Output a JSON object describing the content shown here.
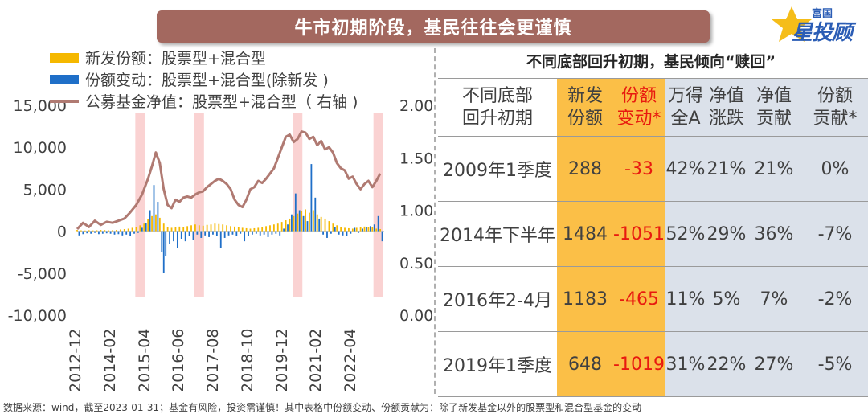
{
  "header": {
    "title": "牛市初期阶段，基民往往会更谨慎",
    "logo_small": "富国",
    "logo_big": "星投顾"
  },
  "legend": [
    {
      "label": "新发份额：股票型+混合型",
      "color": "#f5b800",
      "kind": "bar"
    },
    {
      "label": "份额变动：股票型+混合型(除新发 )",
      "color": "#1f6fc8",
      "kind": "bar"
    },
    {
      "label": "公募基金净值：股票型+混合型（ 右轴 )",
      "color": "#b07a72",
      "kind": "line"
    }
  ],
  "chart_data": {
    "type": "bar",
    "x_tick_labels": [
      "2012-12",
      "2014-02",
      "2015-04",
      "2016-06",
      "2017-08",
      "2018-10",
      "2019-12",
      "2021-02",
      "2022-04"
    ],
    "left_axis": {
      "ticks": [
        "15,000",
        "10,000",
        "5,000",
        "0",
        "-5,000",
        "-10,000"
      ],
      "range": [
        -10000,
        15000
      ]
    },
    "right_axis": {
      "ticks": [
        "2.00",
        "1.50",
        "1.00",
        "0.50",
        "0.00"
      ],
      "range": [
        0.0,
        2.0
      ]
    },
    "highlight_periods": [
      "2014-02",
      "2016-02",
      "2018-12",
      "2022-12"
    ],
    "series": [
      {
        "name": "新发份额：股票型+混合型",
        "color": "#f5b800",
        "values": [
          [
            0,
            150
          ],
          [
            2,
            100
          ],
          [
            4,
            80
          ],
          [
            6,
            120
          ],
          [
            8,
            90
          ],
          [
            10,
            110
          ],
          [
            12,
            150
          ],
          [
            14,
            130
          ],
          [
            16,
            100
          ],
          [
            18,
            120
          ],
          [
            20,
            150
          ],
          [
            22,
            200
          ],
          [
            24,
            250
          ],
          [
            26,
            300
          ],
          [
            28,
            400
          ],
          [
            30,
            500
          ],
          [
            32,
            700
          ],
          [
            34,
            900
          ],
          [
            36,
            1400
          ],
          [
            38,
            1800
          ],
          [
            40,
            2000
          ],
          [
            42,
            1600
          ],
          [
            44,
            900
          ],
          [
            46,
            500
          ],
          [
            48,
            400
          ],
          [
            50,
            450
          ],
          [
            52,
            550
          ],
          [
            54,
            500
          ],
          [
            56,
            600
          ],
          [
            58,
            700
          ],
          [
            60,
            800
          ],
          [
            62,
            700
          ],
          [
            64,
            650
          ],
          [
            66,
            750
          ],
          [
            68,
            800
          ],
          [
            70,
            900
          ],
          [
            72,
            850
          ],
          [
            74,
            800
          ],
          [
            76,
            700
          ],
          [
            78,
            600
          ],
          [
            80,
            550
          ],
          [
            82,
            500
          ],
          [
            84,
            400
          ],
          [
            86,
            350
          ],
          [
            88,
            300
          ],
          [
            90,
            350
          ],
          [
            92,
            400
          ],
          [
            94,
            500
          ],
          [
            96,
            600
          ],
          [
            98,
            700
          ],
          [
            100,
            800
          ],
          [
            102,
            900
          ],
          [
            104,
            1100
          ],
          [
            106,
            1300
          ],
          [
            108,
            1500
          ],
          [
            110,
            1800
          ],
          [
            112,
            2100
          ],
          [
            114,
            2400
          ],
          [
            116,
            2600
          ],
          [
            118,
            2200
          ],
          [
            120,
            2500
          ],
          [
            122,
            2000
          ],
          [
            124,
            1700
          ],
          [
            126,
            1500
          ],
          [
            128,
            1200
          ],
          [
            130,
            900
          ],
          [
            132,
            700
          ],
          [
            134,
            500
          ],
          [
            136,
            400
          ],
          [
            138,
            350
          ],
          [
            140,
            300
          ],
          [
            142,
            400
          ],
          [
            144,
            500
          ],
          [
            146,
            550
          ],
          [
            148,
            500
          ],
          [
            150,
            450
          ],
          [
            152,
            300
          ],
          [
            154,
            250
          ]
        ]
      },
      {
        "name": "份额变动：股票型+混合型(除新发 )",
        "color": "#1f6fc8",
        "values": [
          [
            1,
            -500
          ],
          [
            3,
            -350
          ],
          [
            5,
            -250
          ],
          [
            7,
            -300
          ],
          [
            9,
            -200
          ],
          [
            11,
            -350
          ],
          [
            13,
            -300
          ],
          [
            15,
            -250
          ],
          [
            17,
            -300
          ],
          [
            19,
            -400
          ],
          [
            21,
            -350
          ],
          [
            23,
            -500
          ],
          [
            25,
            -400
          ],
          [
            27,
            -600
          ],
          [
            29,
            -300
          ],
          [
            31,
            -200
          ],
          [
            33,
            400
          ],
          [
            35,
            1000
          ],
          [
            37,
            2500
          ],
          [
            39,
            5500
          ],
          [
            41,
            3500
          ],
          [
            43,
            -2500
          ],
          [
            44,
            -5000
          ],
          [
            45,
            -3000
          ],
          [
            47,
            -1500
          ],
          [
            49,
            -1200
          ],
          [
            51,
            -2000
          ],
          [
            53,
            -900
          ],
          [
            55,
            -1200
          ],
          [
            57,
            -600
          ],
          [
            59,
            -1000
          ],
          [
            61,
            -400
          ],
          [
            63,
            -800
          ],
          [
            65,
            -500
          ],
          [
            67,
            -700
          ],
          [
            69,
            -400
          ],
          [
            71,
            -600
          ],
          [
            73,
            -2000
          ],
          [
            75,
            -800
          ],
          [
            77,
            -500
          ],
          [
            79,
            -400
          ],
          [
            81,
            -600
          ],
          [
            83,
            -300
          ],
          [
            85,
            -1200
          ],
          [
            87,
            -600
          ],
          [
            89,
            -400
          ],
          [
            91,
            -300
          ],
          [
            93,
            -500
          ],
          [
            95,
            -400
          ],
          [
            97,
            -700
          ],
          [
            99,
            -400
          ],
          [
            101,
            -300
          ],
          [
            103,
            -500
          ],
          [
            105,
            300
          ],
          [
            107,
            800
          ],
          [
            109,
            2000
          ],
          [
            111,
            4500
          ],
          [
            113,
            2500
          ],
          [
            115,
            1800
          ],
          [
            117,
            1200
          ],
          [
            119,
            8000
          ],
          [
            121,
            4000
          ],
          [
            123,
            1500
          ],
          [
            125,
            -400
          ],
          [
            127,
            -800
          ],
          [
            129,
            -300
          ],
          [
            131,
            500
          ],
          [
            133,
            -400
          ],
          [
            135,
            -500
          ],
          [
            137,
            -600
          ],
          [
            139,
            -300
          ],
          [
            141,
            400
          ],
          [
            143,
            -200
          ],
          [
            145,
            300
          ],
          [
            147,
            500
          ],
          [
            149,
            600
          ],
          [
            151,
            800
          ],
          [
            153,
            1800
          ],
          [
            155,
            -1200
          ]
        ]
      },
      {
        "name": "公募基金净值：股票型+混合型（ 右轴 )",
        "color": "#b07a72",
        "points": [
          [
            0,
            0.82
          ],
          [
            3,
            0.88
          ],
          [
            6,
            0.84
          ],
          [
            9,
            0.9
          ],
          [
            12,
            0.86
          ],
          [
            15,
            0.89
          ],
          [
            18,
            0.88
          ],
          [
            21,
            0.9
          ],
          [
            24,
            0.92
          ],
          [
            27,
            0.98
          ],
          [
            30,
            1.05
          ],
          [
            33,
            1.15
          ],
          [
            36,
            1.3
          ],
          [
            38,
            1.42
          ],
          [
            40,
            1.55
          ],
          [
            42,
            1.45
          ],
          [
            44,
            1.2
          ],
          [
            46,
            1.05
          ],
          [
            48,
            1.02
          ],
          [
            50,
            1.1
          ],
          [
            52,
            1.08
          ],
          [
            54,
            1.12
          ],
          [
            56,
            1.13
          ],
          [
            58,
            1.12
          ],
          [
            60,
            1.15
          ],
          [
            62,
            1.17
          ],
          [
            64,
            1.18
          ],
          [
            66,
            1.22
          ],
          [
            68,
            1.25
          ],
          [
            70,
            1.28
          ],
          [
            72,
            1.3
          ],
          [
            74,
            1.28
          ],
          [
            76,
            1.25
          ],
          [
            78,
            1.2
          ],
          [
            80,
            1.1
          ],
          [
            82,
            1.05
          ],
          [
            84,
            1.03
          ],
          [
            86,
            1.1
          ],
          [
            88,
            1.2
          ],
          [
            90,
            1.22
          ],
          [
            92,
            1.28
          ],
          [
            94,
            1.26
          ],
          [
            96,
            1.3
          ],
          [
            98,
            1.35
          ],
          [
            100,
            1.4
          ],
          [
            102,
            1.5
          ],
          [
            104,
            1.6
          ],
          [
            106,
            1.7
          ],
          [
            108,
            1.72
          ],
          [
            110,
            1.65
          ],
          [
            112,
            1.68
          ],
          [
            114,
            1.75
          ],
          [
            116,
            1.74
          ],
          [
            118,
            1.68
          ],
          [
            120,
            1.7
          ],
          [
            122,
            1.62
          ],
          [
            124,
            1.66
          ],
          [
            126,
            1.58
          ],
          [
            128,
            1.6
          ],
          [
            130,
            1.55
          ],
          [
            132,
            1.45
          ],
          [
            134,
            1.4
          ],
          [
            136,
            1.38
          ],
          [
            138,
            1.3
          ],
          [
            140,
            1.32
          ],
          [
            142,
            1.25
          ],
          [
            144,
            1.2
          ],
          [
            146,
            1.25
          ],
          [
            148,
            1.28
          ],
          [
            150,
            1.22
          ],
          [
            152,
            1.28
          ],
          [
            154,
            1.35
          ]
        ]
      }
    ]
  },
  "table": {
    "title": "不同底部回升初期，基民倾向“赎回”",
    "headers": [
      {
        "lines": [
          "不同底部",
          "回升初期"
        ]
      },
      {
        "lines": [
          "新发",
          "份额"
        ]
      },
      {
        "lines": [
          "份额",
          "变动*"
        ]
      },
      {
        "lines": [
          "万得",
          "全A"
        ]
      },
      {
        "lines": [
          "净值",
          "涨跌"
        ]
      },
      {
        "lines": [
          "净值",
          "贡献"
        ]
      },
      {
        "lines": [
          "份额",
          "贡献*"
        ]
      }
    ],
    "rows": [
      [
        "2009年1季度",
        "288",
        "-33",
        "42%",
        "21%",
        "21%",
        "0%"
      ],
      [
        "2014年下半年",
        "1484",
        "-1051",
        "52%",
        "29%",
        "36%",
        "-7%"
      ],
      [
        "2016年2-4月",
        "1183",
        "-465",
        "11%",
        "5%",
        "7%",
        "-2%"
      ],
      [
        "2019年1季度",
        "648",
        "-1019",
        "31%",
        "22%",
        "27%",
        "-5%"
      ]
    ]
  },
  "footer": {
    "note": "数据来源：wind，截至2023-01-31；基金有风险，投资需谨慎！其中表格中份额变动、份额贡献为：除了新发基金以外的股票型和混合型基金的变动"
  },
  "colors": {
    "title_bg": "#a3685f",
    "gold": "#fbbf47",
    "grey": "#dbe1ea",
    "negative_red": "#e8190f",
    "highlight": "#f9caca"
  }
}
